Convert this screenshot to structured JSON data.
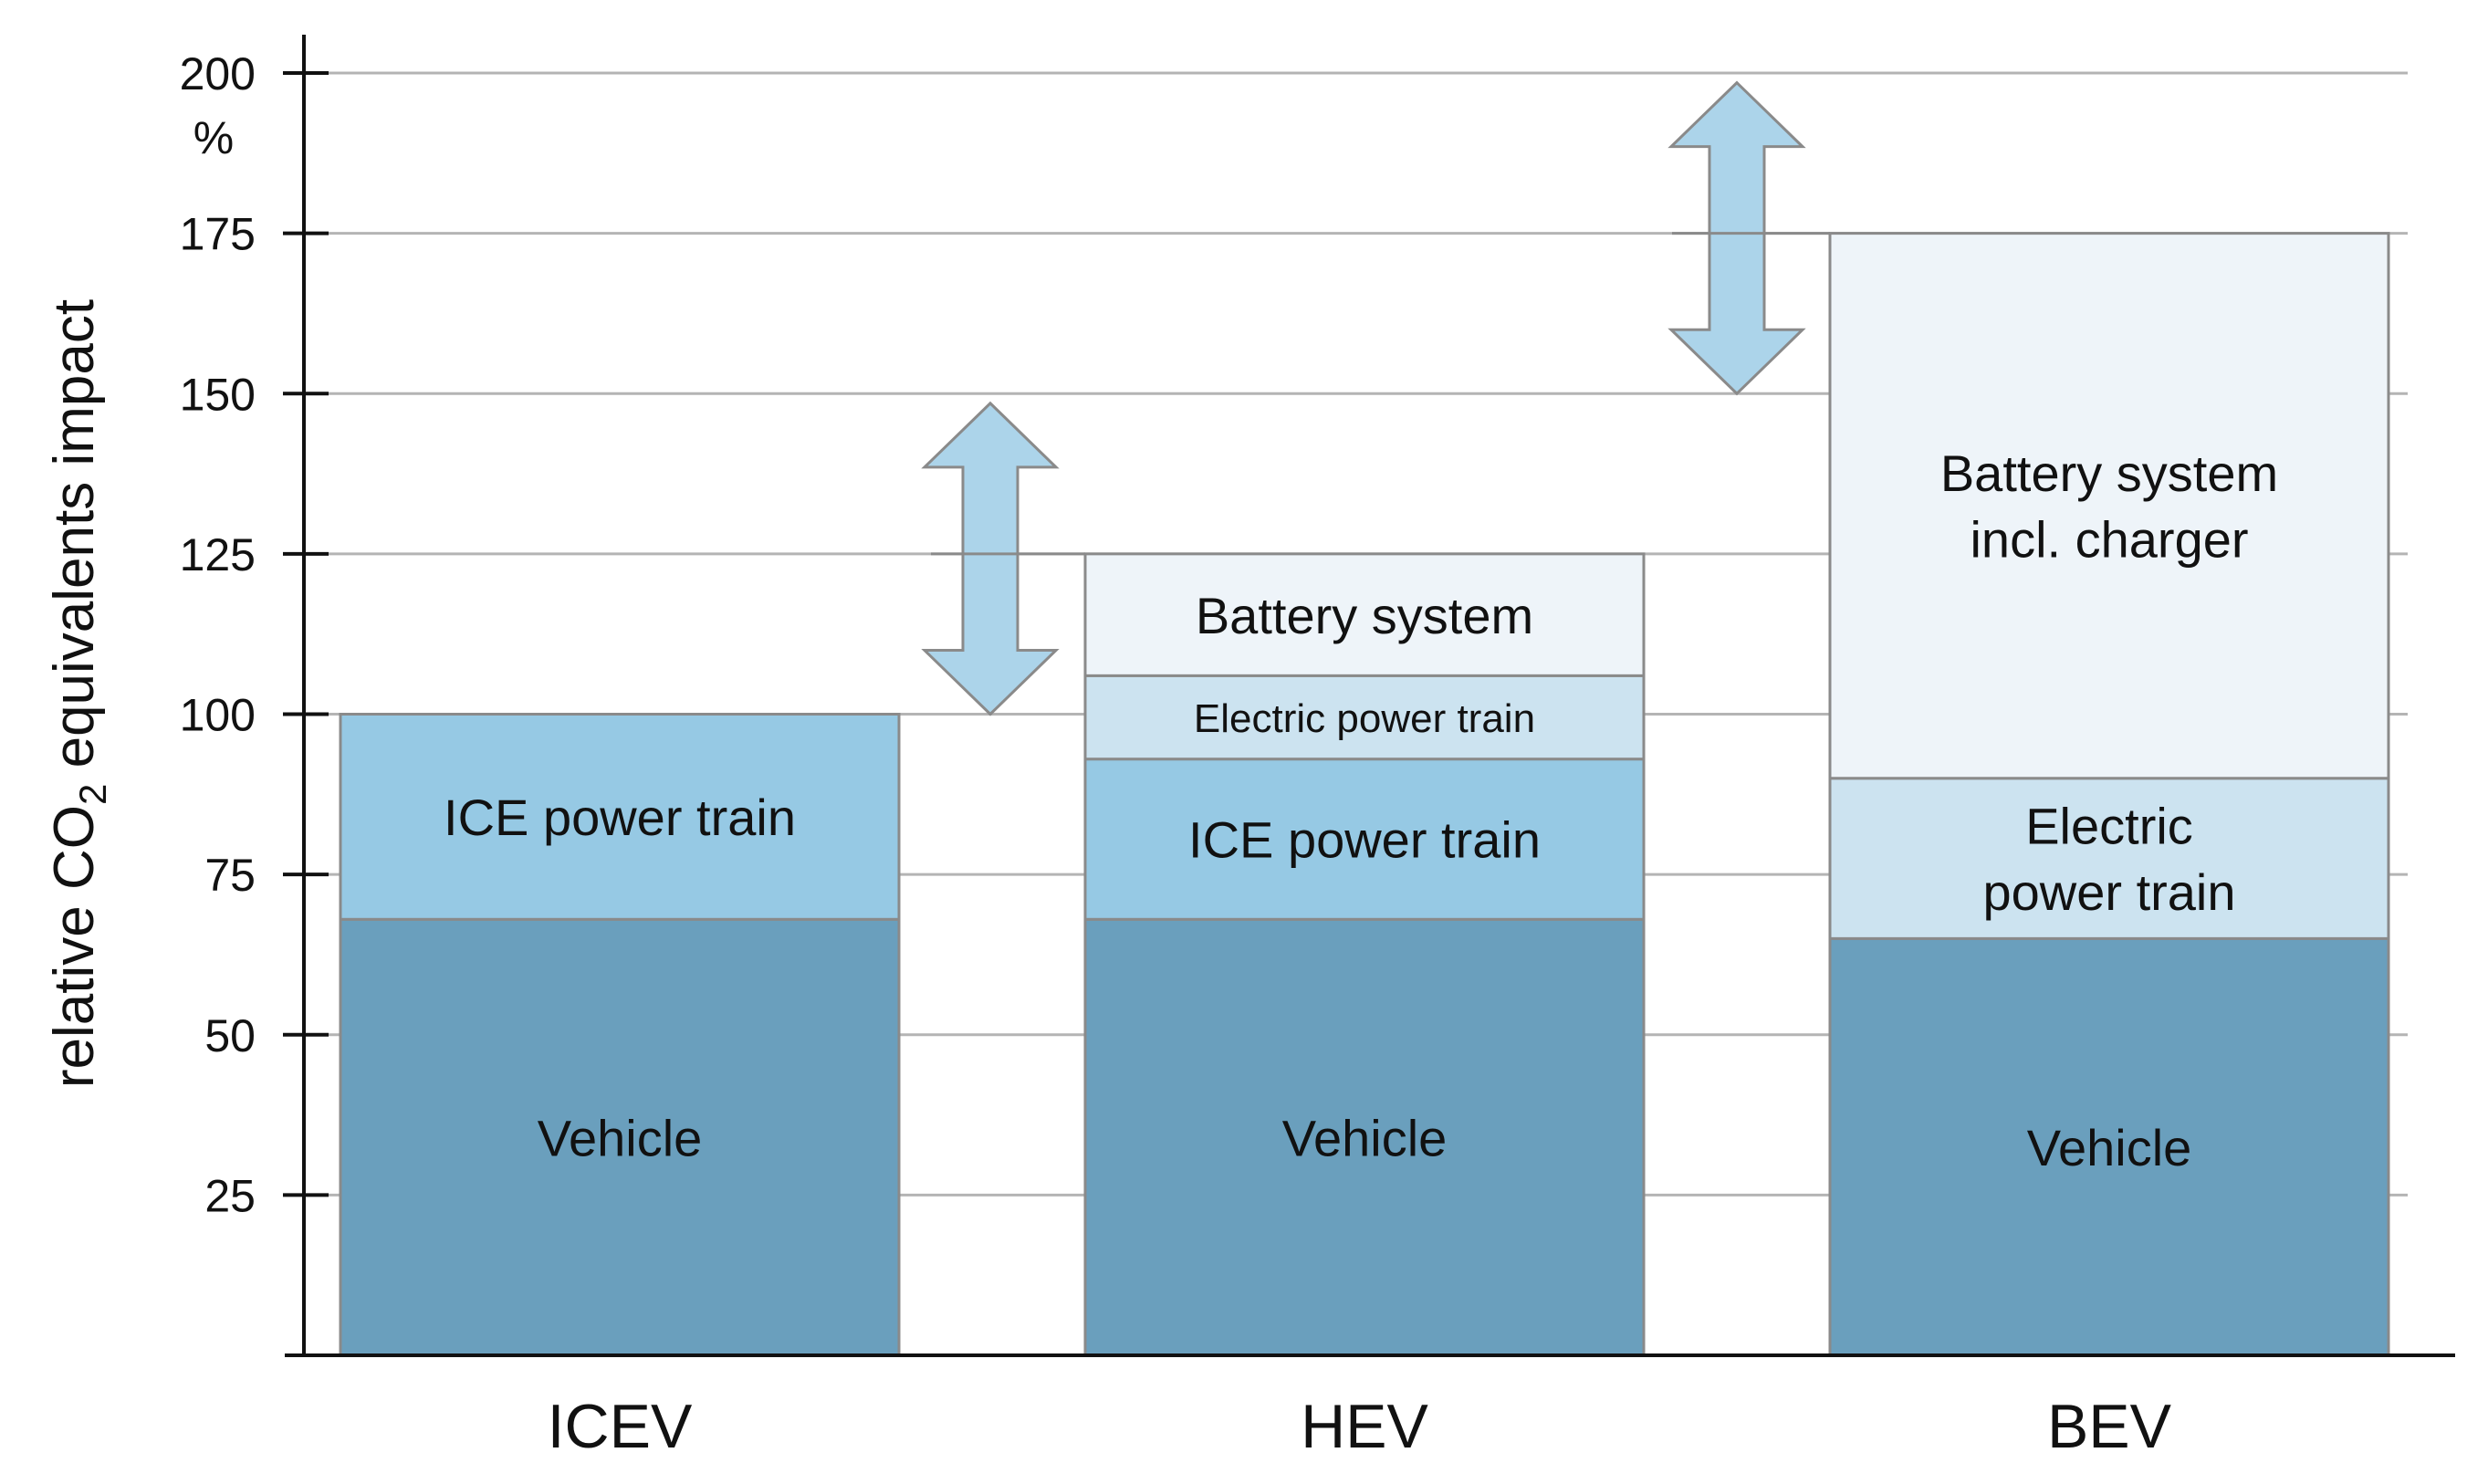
{
  "chart_data": {
    "type": "bar",
    "stacked": true,
    "categories": [
      "ICEV",
      "HEV",
      "BEV"
    ],
    "ylabel": {
      "prefix": "relative CO",
      "subscript": "2",
      "suffix": " equivalents impact"
    },
    "yunit": "%",
    "ylim": [
      0,
      200
    ],
    "yticks": [
      25,
      50,
      75,
      100,
      125,
      150,
      175,
      200
    ],
    "grid": true,
    "bars": [
      {
        "category": "ICEV",
        "segments": [
          {
            "label": "Vehicle",
            "lines": [
              "Vehicle"
            ],
            "value": 68,
            "color": "#6a9fbd"
          },
          {
            "label": "ICE power train",
            "lines": [
              "ICE power train"
            ],
            "value": 32,
            "color": "#96c9e4"
          }
        ]
      },
      {
        "category": "HEV",
        "segments": [
          {
            "label": "Vehicle",
            "lines": [
              "Vehicle"
            ],
            "value": 68,
            "color": "#6a9fbd"
          },
          {
            "label": "ICE power train",
            "lines": [
              "ICE power train"
            ],
            "value": 25,
            "color": "#96c9e4"
          },
          {
            "label": "Electric power train",
            "lines": [
              "Electric power train"
            ],
            "value": 13,
            "color": "#cce3f0"
          },
          {
            "label": "Battery system",
            "lines": [
              "Battery system"
            ],
            "value": 19,
            "color": "#eef4f9"
          }
        ]
      },
      {
        "category": "BEV",
        "segments": [
          {
            "label": "Vehicle",
            "lines": [
              "Vehicle"
            ],
            "value": 65,
            "color": "#6a9fbd"
          },
          {
            "label": "Electric power train",
            "lines": [
              "Electric",
              "power train"
            ],
            "value": 25,
            "color": "#cce3f0"
          },
          {
            "label": "Battery system incl. charger",
            "lines": [
              "Battery system",
              "incl. charger"
            ],
            "value": 85,
            "color": "#eef4f9"
          }
        ]
      }
    ],
    "annotations": [
      {
        "type": "double-arrow",
        "between": [
          "ICEV",
          "HEV"
        ],
        "from": 100,
        "to": 125,
        "color": "#acd4ea"
      },
      {
        "type": "double-arrow",
        "between": [
          "HEV",
          "BEV"
        ],
        "from": 150,
        "to": 175,
        "color": "#acd4ea"
      }
    ]
  }
}
